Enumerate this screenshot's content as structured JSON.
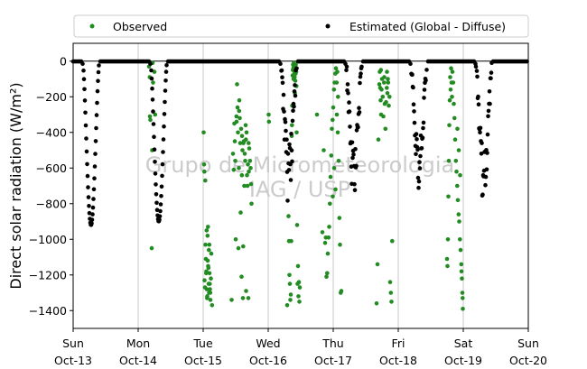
{
  "chart_data": {
    "type": "scatter",
    "ylabel": "Direct solar radiation (W/m²)",
    "xlim": [
      "2023-10-15 00:00",
      "2023-10-22 00:00"
    ],
    "ylim": [
      -1500,
      100
    ],
    "yticks": [
      0,
      -200,
      -400,
      -600,
      -800,
      -1000,
      -1200,
      -1400
    ],
    "xticks": [
      {
        "day": "Sun",
        "date": "Oct-13"
      },
      {
        "day": "Mon",
        "date": "Oct-14"
      },
      {
        "day": "Tue",
        "date": "Oct-15"
      },
      {
        "day": "Wed",
        "date": "Oct-16"
      },
      {
        "day": "Thu",
        "date": "Oct-17"
      },
      {
        "day": "Fri",
        "date": "Oct-18"
      },
      {
        "day": "Sat",
        "date": "Oct-19"
      },
      {
        "day": "Sun",
        "date": "Oct-20"
      }
    ],
    "grid": "vertical",
    "zero_line": true,
    "legend_placement": "top (above plot)",
    "watermark": [
      "Grupo de Micrometeorologia",
      "IAG / USP"
    ],
    "series": [
      {
        "name": "Observed",
        "color": "#228b22",
        "marker": "circle",
        "points": [
          [
            "2023-10-16 04:00",
            -30
          ],
          [
            "2023-10-16 04:15",
            -90
          ],
          [
            "2023-10-16 04:20",
            -310
          ],
          [
            "2023-10-16 04:30",
            -330
          ],
          [
            "2023-10-16 05:00",
            -1050
          ],
          [
            "2023-10-16 05:10",
            -500
          ],
          [
            "2023-10-16 05:20",
            -10
          ],
          [
            "2023-10-16 05:30",
            -120
          ],
          [
            "2023-10-16 06:00",
            -60
          ],
          [
            "2023-10-16 06:15",
            -300
          ],
          [
            "2023-10-17 01:00",
            -1110
          ],
          [
            "2023-10-17 01:10",
            -1180
          ],
          [
            "2023-10-17 01:15",
            -950
          ],
          [
            "2023-10-17 01:20",
            -1280
          ],
          [
            "2023-10-17 01:30",
            -1320
          ],
          [
            "2023-10-17 01:40",
            -1120
          ],
          [
            "2023-10-17 01:45",
            -930
          ],
          [
            "2023-10-17 01:50",
            -1150
          ],
          [
            "2023-10-17 02:00",
            -1250
          ],
          [
            "2023-10-17 02:10",
            -1300
          ],
          [
            "2023-10-17 02:15",
            -1030
          ],
          [
            "2023-10-17 02:20",
            -1190
          ],
          [
            "2023-10-17 02:30",
            -1280
          ],
          [
            "2023-10-17 02:40",
            -1340
          ],
          [
            "2023-10-17 02:50",
            -1220
          ],
          [
            "2023-10-17 03:00",
            -1080
          ],
          [
            "2023-10-17 03:15",
            -1370
          ],
          [
            "2023-10-17 00:30",
            -1230
          ],
          [
            "2023-10-17 00:40",
            -1270
          ],
          [
            "2023-10-17 00:20",
            -580
          ],
          [
            "2023-10-17 00:10",
            -400
          ],
          [
            "2023-10-17 00:50",
            -1030
          ],
          [
            "2023-10-17 01:05",
            -1190
          ],
          [
            "2023-10-17 01:25",
            -1330
          ],
          [
            "2023-10-17 01:35",
            -980
          ],
          [
            "2023-10-17 01:55",
            -1160
          ],
          [
            "2023-10-17 02:05",
            -1060
          ],
          [
            "2023-10-17 02:25",
            -1250
          ],
          [
            "2023-10-17 02:35",
            -1300
          ],
          [
            "2023-10-17 00:45",
            -670
          ],
          [
            "2023-10-17 00:25",
            -620
          ],
          [
            "2023-10-17 10:30",
            -1340
          ],
          [
            "2023-10-17 11:00",
            -520
          ],
          [
            "2023-10-17 11:15",
            -610
          ],
          [
            "2023-10-17 11:30",
            -350
          ],
          [
            "2023-10-17 11:40",
            -450
          ],
          [
            "2023-10-17 11:50",
            -560
          ],
          [
            "2023-10-17 12:00",
            -1000
          ],
          [
            "2023-10-17 12:15",
            -310
          ],
          [
            "2023-10-17 12:30",
            -130
          ],
          [
            "2023-10-17 12:40",
            -260
          ],
          [
            "2023-10-17 12:50",
            -400
          ],
          [
            "2023-10-17 13:00",
            -1050
          ],
          [
            "2023-10-17 13:10",
            -600
          ],
          [
            "2023-10-17 13:20",
            -220
          ],
          [
            "2023-10-17 13:30",
            -320
          ],
          [
            "2023-10-17 13:40",
            -460
          ],
          [
            "2023-10-17 13:50",
            -850
          ],
          [
            "2023-10-17 14:00",
            -380
          ],
          [
            "2023-10-17 14:10",
            -1210
          ],
          [
            "2023-10-17 14:15",
            -640
          ],
          [
            "2023-10-17 14:20",
            -420
          ],
          [
            "2023-10-17 14:30",
            -500
          ],
          [
            "2023-10-17 14:40",
            -1330
          ],
          [
            "2023-10-17 14:45",
            -1040
          ],
          [
            "2023-10-17 15:00",
            -450
          ],
          [
            "2023-10-17 15:10",
            -700
          ],
          [
            "2023-10-17 15:20",
            -520
          ],
          [
            "2023-10-17 15:30",
            -560
          ],
          [
            "2023-10-17 15:40",
            -360
          ],
          [
            "2023-10-17 15:50",
            -1290
          ],
          [
            "2023-10-17 16:00",
            -400
          ],
          [
            "2023-10-17 16:10",
            -640
          ],
          [
            "2023-10-17 16:20",
            -700
          ],
          [
            "2023-10-17 16:30",
            -580
          ],
          [
            "2023-10-17 16:40",
            -1330
          ],
          [
            "2023-10-17 16:50",
            -620
          ],
          [
            "2023-10-17 17:00",
            -490
          ],
          [
            "2023-10-17 17:15",
            -560
          ],
          [
            "2023-10-17 17:30",
            -600
          ],
          [
            "2023-10-17 17:40",
            -690
          ],
          [
            "2023-10-17 17:50",
            -800
          ],
          [
            "2023-10-17 12:20",
            -340
          ],
          [
            "2023-10-17 13:15",
            -280
          ],
          [
            "2023-10-17 14:50",
            -460
          ],
          [
            "2023-10-17 15:45",
            -440
          ],
          [
            "2023-10-17 16:45",
            -460
          ],
          [
            "2023-10-18 00:10",
            -300
          ],
          [
            "2023-10-18 00:15",
            -340
          ],
          [
            "2023-10-18 07:00",
            -1370
          ],
          [
            "2023-10-18 07:30",
            -870
          ],
          [
            "2023-10-18 07:40",
            -1010
          ],
          [
            "2023-10-18 07:50",
            -1200
          ],
          [
            "2023-10-18 08:00",
            -1250
          ],
          [
            "2023-10-18 08:10",
            -1340
          ],
          [
            "2023-10-18 08:20",
            -1310
          ],
          [
            "2023-10-18 08:30",
            -1010
          ],
          [
            "2023-10-18 08:40",
            -420
          ],
          [
            "2023-10-18 08:50",
            -250
          ],
          [
            "2023-10-18 09:00",
            -80
          ],
          [
            "2023-10-18 09:10",
            -20
          ],
          [
            "2023-10-18 09:15",
            -40
          ],
          [
            "2023-10-18 09:20",
            -100
          ],
          [
            "2023-10-18 09:30",
            -30
          ],
          [
            "2023-10-18 09:40",
            -60
          ],
          [
            "2023-10-18 09:50",
            -180
          ],
          [
            "2023-10-18 10:00",
            -110
          ],
          [
            "2023-10-18 10:10",
            -20
          ],
          [
            "2023-10-18 10:20",
            -60
          ],
          [
            "2023-10-18 10:30",
            -400
          ],
          [
            "2023-10-18 10:40",
            -920
          ],
          [
            "2023-10-18 10:50",
            -1250
          ],
          [
            "2023-10-18 11:00",
            -1150
          ],
          [
            "2023-10-18 11:10",
            -1320
          ],
          [
            "2023-10-18 11:20",
            -1240
          ],
          [
            "2023-10-18 11:30",
            -1350
          ],
          [
            "2023-10-18 11:40",
            -1270
          ],
          [
            "2023-10-18 09:05",
            -50
          ],
          [
            "2023-10-18 09:25",
            -10
          ],
          [
            "2023-10-18 09:45",
            -90
          ],
          [
            "2023-10-18 10:05",
            -70
          ],
          [
            "2023-10-18 10:25",
            -140
          ],
          [
            "2023-10-18 08:45",
            -360
          ],
          [
            "2023-10-18 18:00",
            -300
          ],
          [
            "2023-10-18 20:00",
            -960
          ],
          [
            "2023-10-18 20:30",
            -500
          ],
          [
            "2023-10-18 21:00",
            -1020
          ],
          [
            "2023-10-18 21:15",
            -990
          ],
          [
            "2023-10-18 21:30",
            -1210
          ],
          [
            "2023-10-18 21:45",
            -1190
          ],
          [
            "2023-10-18 22:00",
            -1080
          ],
          [
            "2023-10-18 22:15",
            -990
          ],
          [
            "2023-10-18 22:30",
            -930
          ],
          [
            "2023-10-18 22:45",
            -800
          ],
          [
            "2023-10-18 23:00",
            -650
          ],
          [
            "2023-10-18 23:15",
            -530
          ],
          [
            "2023-10-18 23:30",
            -380
          ],
          [
            "2023-10-18 23:45",
            -330
          ],
          [
            "2023-10-19 00:00",
            -260
          ],
          [
            "2023-10-19 00:15",
            -160
          ],
          [
            "2023-10-19 00:30",
            -120
          ],
          [
            "2023-10-19 00:45",
            -70
          ],
          [
            "2023-10-19 01:00",
            -40
          ],
          [
            "2023-10-19 01:15",
            -120
          ],
          [
            "2023-10-19 01:30",
            -60
          ],
          [
            "2023-10-19 01:45",
            -200
          ],
          [
            "2023-10-19 02:00",
            -560
          ],
          [
            "2023-10-19 02:15",
            -880
          ],
          [
            "2023-10-19 02:30",
            -1030
          ],
          [
            "2023-10-19 03:00",
            -1290
          ],
          [
            "2023-10-19 02:45",
            -1300
          ],
          [
            "2023-10-19 01:20",
            -300
          ],
          [
            "2023-10-19 01:40",
            -400
          ],
          [
            "2023-10-19 00:50",
            -720
          ],
          [
            "2023-10-19 00:20",
            -600
          ],
          [
            "2023-10-18 23:50",
            -760
          ],
          [
            "2023-10-19 16:00",
            -1360
          ],
          [
            "2023-10-19 16:20",
            -1140
          ],
          [
            "2023-10-19 16:40",
            -440
          ],
          [
            "2023-10-19 17:00",
            -130
          ],
          [
            "2023-10-19 17:10",
            -60
          ],
          [
            "2023-10-19 17:20",
            -150
          ],
          [
            "2023-10-19 17:30",
            -220
          ],
          [
            "2023-10-19 17:40",
            -300
          ],
          [
            "2023-10-19 17:50",
            -160
          ],
          [
            "2023-10-19 18:00",
            -100
          ],
          [
            "2023-10-19 18:15",
            -200
          ],
          [
            "2023-10-19 18:30",
            -310
          ],
          [
            "2023-10-19 18:45",
            -120
          ],
          [
            "2023-10-19 19:00",
            -240
          ],
          [
            "2023-10-19 19:15",
            -380
          ],
          [
            "2023-10-19 19:30",
            -230
          ],
          [
            "2023-10-19 19:45",
            -150
          ],
          [
            "2023-10-19 20:00",
            -180
          ],
          [
            "2023-10-19 20:15",
            -120
          ],
          [
            "2023-10-19 20:30",
            -250
          ],
          [
            "2023-10-19 20:45",
            -200
          ],
          [
            "2023-10-19 21:00",
            -1240
          ],
          [
            "2023-10-19 21:15",
            -1300
          ],
          [
            "2023-10-19 21:30",
            -1350
          ],
          [
            "2023-10-19 21:45",
            -1010
          ],
          [
            "2023-10-19 17:35",
            -50
          ],
          [
            "2023-10-19 18:50",
            -90
          ],
          [
            "2023-10-19 19:50",
            -60
          ],
          [
            "2023-10-19 20:10",
            -100
          ],
          [
            "2023-10-20 18:00",
            -1110
          ],
          [
            "2023-10-20 18:10",
            -1150
          ],
          [
            "2023-10-20 18:20",
            -1000
          ],
          [
            "2023-10-20 18:30",
            -760
          ],
          [
            "2023-10-20 18:40",
            -560
          ],
          [
            "2023-10-20 18:50",
            -360
          ],
          [
            "2023-10-20 19:00",
            -220
          ],
          [
            "2023-10-20 19:10",
            -90
          ],
          [
            "2023-10-20 19:20",
            -160
          ],
          [
            "2023-10-20 19:30",
            -40
          ],
          [
            "2023-10-20 19:40",
            -120
          ],
          [
            "2023-10-20 19:50",
            -200
          ],
          [
            "2023-10-20 20:00",
            -60
          ],
          [
            "2023-10-20 20:15",
            -120
          ],
          [
            "2023-10-20 20:30",
            -240
          ],
          [
            "2023-10-20 20:45",
            -320
          ],
          [
            "2023-10-20 21:00",
            -440
          ],
          [
            "2023-10-20 21:15",
            -560
          ],
          [
            "2023-10-20 21:30",
            -620
          ],
          [
            "2023-10-20 21:45",
            -700
          ],
          [
            "2023-10-20 22:00",
            -780
          ],
          [
            "2023-10-20 22:15",
            -860
          ],
          [
            "2023-10-20 22:30",
            -900
          ],
          [
            "2023-10-20 22:45",
            -1000
          ],
          [
            "2023-10-20 23:00",
            -1060
          ],
          [
            "2023-10-20 23:15",
            -1140
          ],
          [
            "2023-10-20 23:30",
            -1220
          ],
          [
            "2023-10-20 23:40",
            -1300
          ],
          [
            "2023-10-20 23:50",
            -1390
          ],
          [
            "2023-10-20 23:45",
            -1330
          ],
          [
            "2023-10-20 23:20",
            -1180
          ],
          [
            "2023-10-20 22:50",
            -640
          ],
          [
            "2023-10-20 22:20",
            -500
          ],
          [
            "2023-10-20 21:50",
            -380
          ]
        ]
      },
      {
        "name": "Estimated (Global - Diffuse)",
        "color": "#000000",
        "marker": "circle",
        "points": []
      }
    ]
  },
  "legend": {
    "observed_label": "Observed",
    "estimated_label": "Estimated (Global - Diffuse)"
  },
  "axes": {
    "ylabel": "Direct solar radiation (W/m²)"
  }
}
